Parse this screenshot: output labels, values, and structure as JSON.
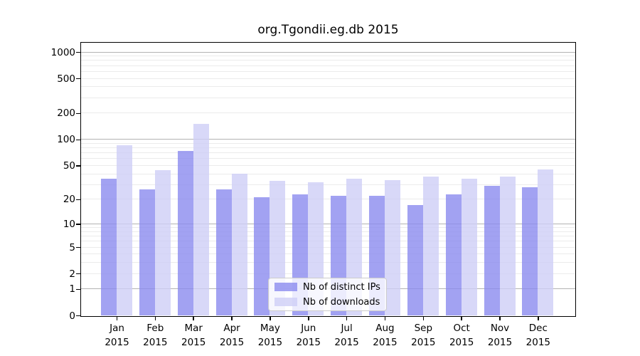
{
  "chart_data": {
    "type": "bar",
    "title": "org.Tgondii.eg.db 2015",
    "categories": [
      "Jan",
      "Feb",
      "Mar",
      "Apr",
      "May",
      "Jun",
      "Jul",
      "Aug",
      "Sep",
      "Oct",
      "Nov",
      "Dec"
    ],
    "x_tick_year": "2015",
    "series": [
      {
        "name": "Nb of distinct IPs",
        "color": "rgba(139,139,239,0.8)",
        "values": [
          35,
          26,
          74,
          26,
          21,
          23,
          22,
          22,
          17,
          23,
          29,
          28
        ]
      },
      {
        "name": "Nb of downloads",
        "color": "rgba(206,206,246,0.8)",
        "values": [
          86,
          44,
          150,
          40,
          33,
          32,
          35,
          34,
          37,
          35,
          37,
          45
        ]
      }
    ],
    "y_ticks": [
      0,
      1,
      2,
      5,
      10,
      20,
      50,
      100,
      200,
      500,
      1000
    ],
    "y_scale": "log1p",
    "ylim": [
      0,
      1320
    ],
    "xlabel": "",
    "ylabel": "",
    "grid": "both",
    "grid_major_values": [
      1,
      10,
      100,
      1000
    ],
    "legend_position": "lower center",
    "colors": {
      "axis": "#000000",
      "grid_major": "#b3b3b3",
      "grid_minor": "#ebebeb",
      "background": "#ffffff"
    }
  }
}
